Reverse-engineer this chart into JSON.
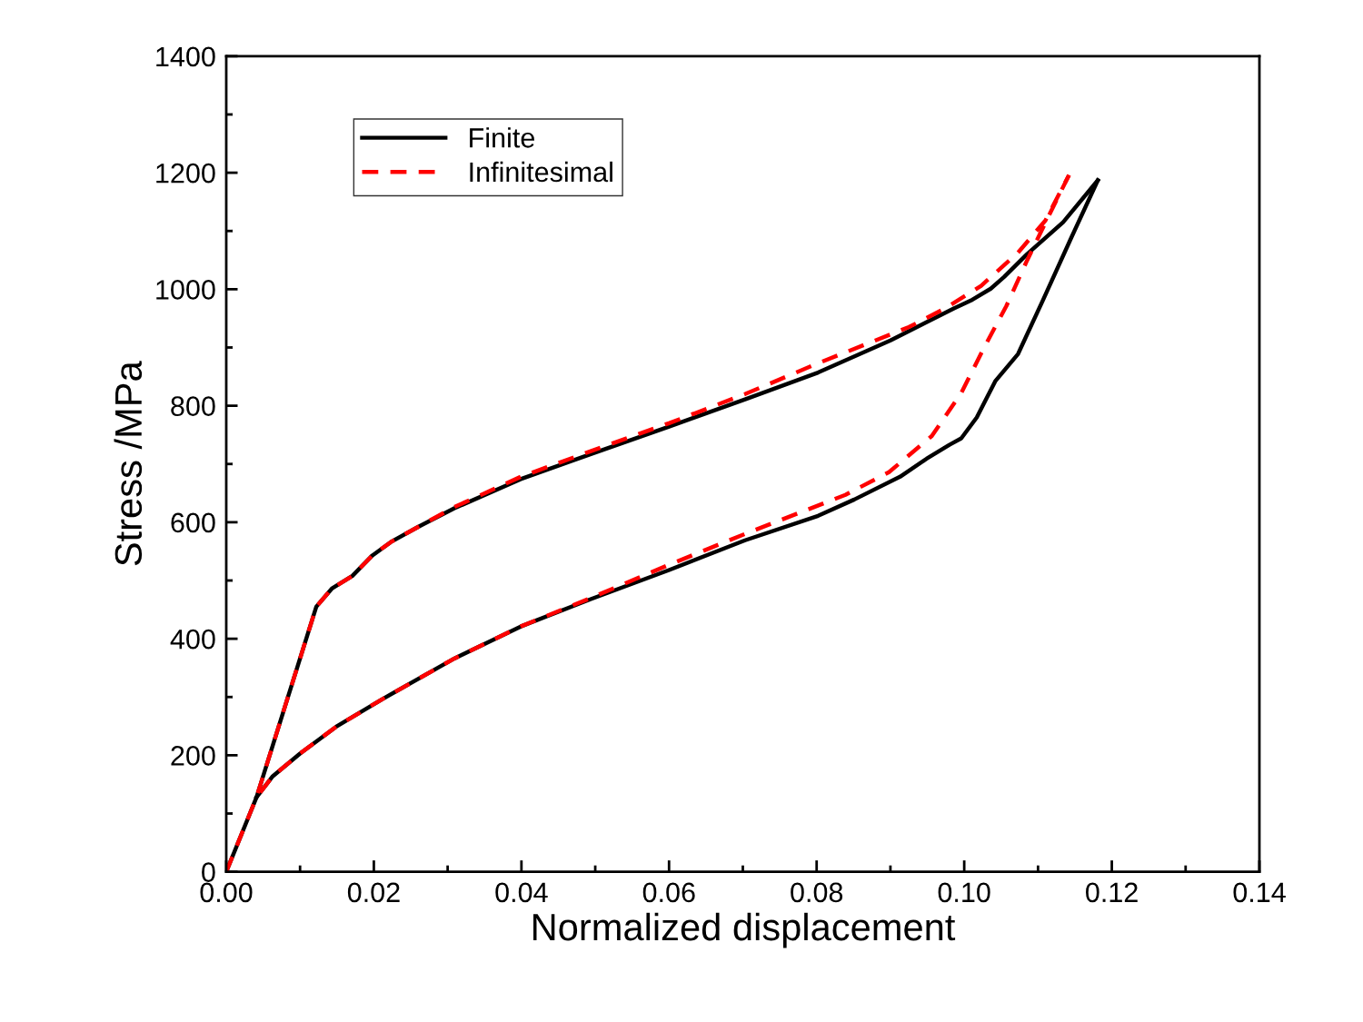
{
  "chart_data": {
    "type": "line",
    "xlabel": "Normalized displacement",
    "ylabel": "Stress /MPa",
    "xlim": [
      0,
      0.14
    ],
    "xticks": [
      {
        "value": 0,
        "label": "0.00"
      },
      {
        "value": 0.02,
        "label": "0.02"
      },
      {
        "value": 0.04,
        "label": "0.04"
      },
      {
        "value": 0.06,
        "label": "0.06"
      },
      {
        "value": 0.08,
        "label": "0.08"
      },
      {
        "value": 0.1,
        "label": "0.10"
      },
      {
        "value": 0.12,
        "label": "0.12"
      },
      {
        "value": 0.14,
        "label": "0.14"
      }
    ],
    "ylim": [
      0,
      1400
    ],
    "yticks": [
      0,
      200,
      400,
      600,
      800,
      1000,
      1200,
      1400
    ],
    "legend": "top left",
    "grid": false,
    "marker": "none",
    "series": [
      {
        "name": "Finite",
        "color": "#000000",
        "line_style": "solid",
        "x": [
          0,
          0.0041,
          0.0122,
          0.0143,
          0.0171,
          0.0198,
          0.0223,
          0.026,
          0.0309,
          0.0399,
          0.0494,
          0.06,
          0.0703,
          0.0802,
          0.09,
          0.0986,
          0.1011,
          0.1036,
          0.1054,
          0.1085,
          0.1134,
          0.1181
        ],
        "values": [
          0,
          128,
          455,
          486,
          508,
          543,
          566,
          592,
          624,
          674,
          717,
          764,
          811,
          857,
          912,
          967,
          982,
          1001,
          1021,
          1060,
          1115,
          1187
        ]
      },
      {
        "color": "#000000",
        "line_style": "solid",
        "x": [
          0.1181,
          0.1146,
          0.1107,
          0.1073,
          0.1042,
          0.1017,
          0.0996,
          0.098,
          0.0949,
          0.0913,
          0.0851,
          0.0802,
          0.0703,
          0.06,
          0.0494,
          0.0399,
          0.0309,
          0.0211,
          0.0149,
          0.01,
          0.0063,
          0.0041
        ],
        "values": [
          1187,
          1091,
          982,
          889,
          842,
          780,
          744,
          733,
          709,
          678,
          639,
          611,
          569,
          518,
          468,
          421,
          366,
          296,
          249,
          203,
          164,
          128
        ]
      },
      {
        "name": "Infinitesimal",
        "color": "#ff0000",
        "line_style": "dashed",
        "x": [
          0,
          0.0041,
          0.0122,
          0.0143,
          0.0171,
          0.0198,
          0.0223,
          0.026,
          0.0309,
          0.0399,
          0.0494,
          0.06,
          0.0703,
          0.0802,
          0.0925,
          0.0974,
          0.1023,
          0.1073,
          0.111,
          0.1142
        ],
        "values": [
          0,
          128,
          455,
          486,
          508,
          543,
          566,
          592,
          626,
          678,
          722,
          770,
          820,
          873,
          935,
          967,
          1006,
          1063,
          1118,
          1196
        ]
      },
      {
        "color": "#ff0000",
        "line_style": "dashed",
        "x": [
          0.1142,
          0.1113,
          0.1085,
          0.1057,
          0.1027,
          0.0996,
          0.0956,
          0.0898,
          0.0839,
          0.0703,
          0.06,
          0.0494,
          0.0399,
          0.0309,
          0.0211,
          0.0149,
          0.01,
          0.0063,
          0.0041
        ],
        "values": [
          1196,
          1122,
          1049,
          971,
          900,
          822,
          748,
          686,
          647,
          580,
          527,
          470,
          421,
          366,
          296,
          249,
          203,
          164,
          128
        ]
      }
    ]
  }
}
